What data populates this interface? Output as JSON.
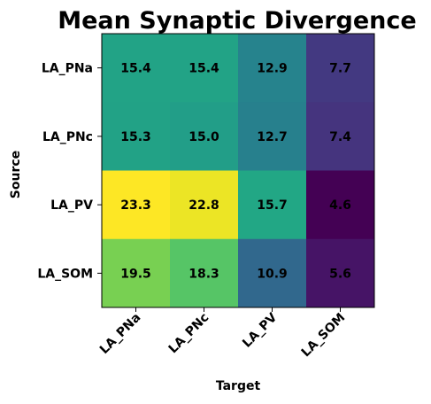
{
  "chart_data": {
    "type": "heatmap",
    "title": "Mean Synaptic Divergence",
    "xlabel": "Target",
    "ylabel": "Source",
    "x_categories": [
      "LA_PNa",
      "LA_PNc",
      "LA_PV",
      "LA_SOM"
    ],
    "y_categories": [
      "LA_PNa",
      "LA_PNc",
      "LA_PV",
      "LA_SOM"
    ],
    "values": [
      [
        15.4,
        15.4,
        12.9,
        7.7
      ],
      [
        15.3,
        15.0,
        12.7,
        7.4
      ],
      [
        23.3,
        22.8,
        15.7,
        4.6
      ],
      [
        19.5,
        18.3,
        10.9,
        5.6
      ]
    ],
    "colormap": "viridis",
    "value_range": [
      4.6,
      23.3
    ],
    "grid": false,
    "colorbar": false
  }
}
